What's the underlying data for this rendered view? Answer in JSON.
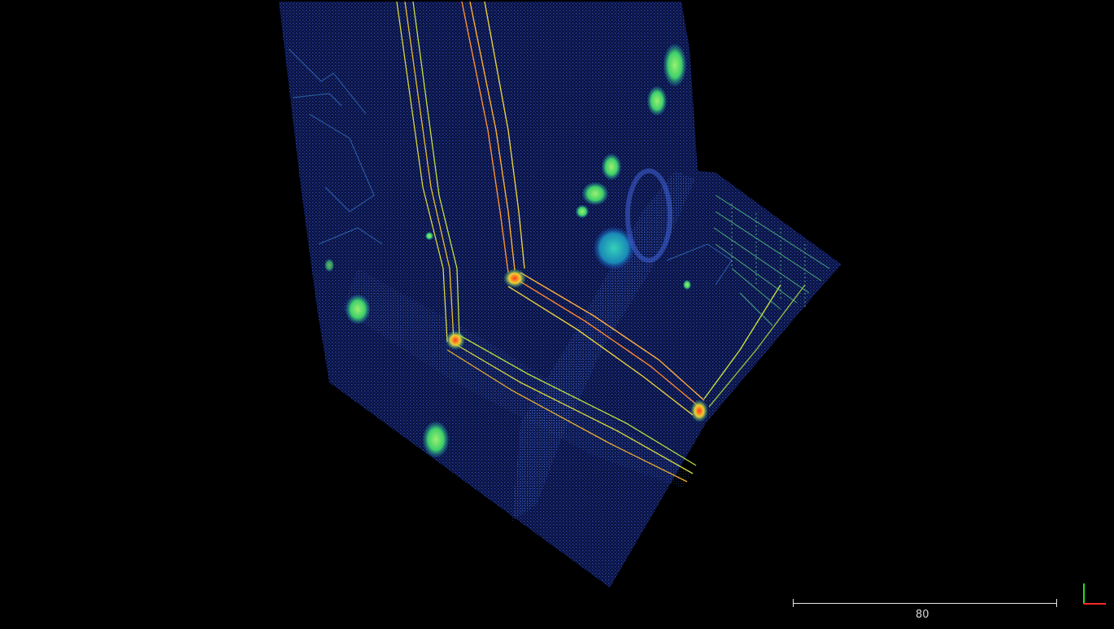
{
  "viewer": {
    "background_color": "#000000",
    "scale_bar": {
      "label": "80"
    },
    "axes_widget": {
      "x_axis_color": "#ff2a2a",
      "y_axis_color": "#22dd22"
    }
  },
  "point_cloud": {
    "colormap": [
      "#1a2b8f",
      "#2f4cc8",
      "#1f8fb0",
      "#22c8a0",
      "#4fe860",
      "#e8e030",
      "#ff7a20",
      "#ff2020"
    ],
    "ground_color": "#1e2f9a",
    "markers": [
      {
        "name": "intersection-marker",
        "color": "#ff5030"
      },
      {
        "name": "intersection-marker",
        "color": "#ff5030"
      },
      {
        "name": "intersection-marker",
        "color": "#ff5030"
      }
    ]
  }
}
